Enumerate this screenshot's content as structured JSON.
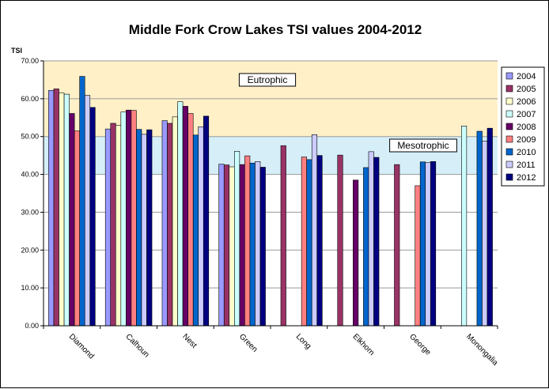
{
  "chart_data": {
    "type": "bar",
    "title": "Middle Fork Crow Lakes TSI values 2004-2012",
    "ylabel": "TSI",
    "xlabel": "",
    "ylim": [
      0,
      70
    ],
    "yticks": [
      "0.00",
      "10.00",
      "20.00",
      "30.00",
      "40.00",
      "50.00",
      "60.00",
      "70.00"
    ],
    "categories": [
      "Diamond",
      "Calhoun",
      "Nest",
      "Green",
      "Long",
      "Elkhorn",
      "George",
      "Monongalia"
    ],
    "zones": [
      {
        "label": "Eutrophic",
        "from": 50,
        "to": 70,
        "color": "#FFF0C8"
      },
      {
        "label": "Mesotrophic",
        "from": 40,
        "to": 50,
        "color": "#D5EEF8"
      }
    ],
    "legend_position": "right",
    "grid": true,
    "series": [
      {
        "name": "2004",
        "color": "#9999FF",
        "values": [
          62.2,
          52.0,
          54.2,
          42.7,
          null,
          null,
          null,
          null
        ]
      },
      {
        "name": "2005",
        "color": "#993366",
        "values": [
          62.6,
          53.5,
          53.5,
          42.5,
          47.6,
          45.1,
          42.6,
          null
        ]
      },
      {
        "name": "2006",
        "color": "#FFFFCC",
        "values": [
          61.5,
          53.0,
          55.2,
          42.0,
          null,
          null,
          null,
          null
        ]
      },
      {
        "name": "2007",
        "color": "#CCFFFF",
        "values": [
          61.2,
          56.5,
          59.2,
          46.1,
          null,
          null,
          null,
          52.8
        ]
      },
      {
        "name": "2008",
        "color": "#660066",
        "values": [
          56.1,
          57.0,
          58.0,
          42.6,
          null,
          38.5,
          null,
          null
        ]
      },
      {
        "name": "2009",
        "color": "#FF8080",
        "values": [
          51.5,
          56.9,
          56.1,
          44.9,
          44.6,
          null,
          37.0,
          null
        ]
      },
      {
        "name": "2010",
        "color": "#0066CC",
        "values": [
          65.9,
          51.9,
          50.4,
          43.0,
          43.9,
          41.8,
          43.3,
          51.4
        ]
      },
      {
        "name": "2011",
        "color": "#CCCCFF",
        "values": [
          60.9,
          50.6,
          52.6,
          43.4,
          50.5,
          46.0,
          43.1,
          48.8
        ]
      },
      {
        "name": "2012",
        "color": "#000080",
        "values": [
          57.7,
          51.8,
          55.4,
          41.9,
          45.0,
          44.5,
          43.4,
          52.2
        ]
      }
    ]
  }
}
